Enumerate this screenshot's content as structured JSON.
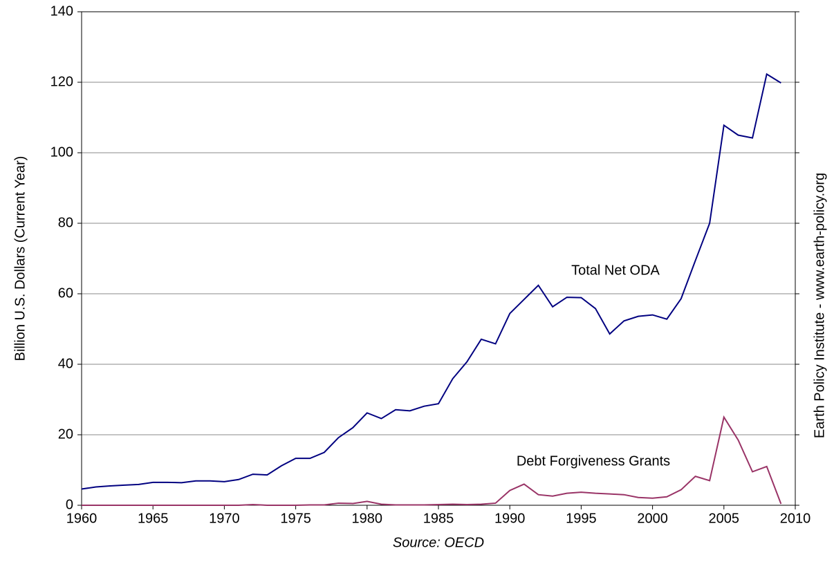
{
  "chart_data": {
    "type": "line",
    "y_label": "Billion U.S. Dollars (Current Year)",
    "x_label": "Source: OECD",
    "right_label": "Earth Policy Institute - www.earth-policy.org",
    "x": [
      1960,
      1961,
      1962,
      1963,
      1964,
      1965,
      1966,
      1967,
      1968,
      1969,
      1970,
      1971,
      1972,
      1973,
      1974,
      1975,
      1976,
      1977,
      1978,
      1979,
      1980,
      1981,
      1982,
      1983,
      1984,
      1985,
      1986,
      1987,
      1988,
      1989,
      1990,
      1991,
      1992,
      1993,
      1994,
      1995,
      1996,
      1997,
      1998,
      1999,
      2000,
      2001,
      2002,
      2003,
      2004,
      2005,
      2006,
      2007,
      2008,
      2009
    ],
    "series": [
      {
        "name": "Total Net ODA",
        "color": "#000080",
        "values": [
          4.6,
          5.2,
          5.5,
          5.7,
          5.9,
          6.5,
          6.5,
          6.4,
          6.9,
          6.9,
          6.7,
          7.3,
          8.8,
          8.6,
          11.2,
          13.3,
          13.3,
          15.0,
          19.2,
          22.0,
          26.2,
          24.6,
          27.1,
          26.8,
          28.1,
          28.8,
          35.9,
          40.7,
          47.1,
          45.8,
          54.4,
          58.4,
          62.4,
          56.3,
          59.0,
          58.9,
          55.8,
          48.6,
          52.3,
          53.6,
          54.0,
          52.8,
          58.6,
          69.4,
          80.0,
          107.8,
          105.0,
          104.2,
          122.3,
          119.8
        ]
      },
      {
        "name": "Debt Forgiveness Grants",
        "color": "#993366",
        "values": [
          0,
          0,
          0,
          0,
          0,
          0,
          0,
          0,
          0,
          0,
          0,
          0,
          0.2,
          0,
          0,
          0,
          0.1,
          0.1,
          0.6,
          0.5,
          1.1,
          0.3,
          0.1,
          0.1,
          0.1,
          0.2,
          0.3,
          0.2,
          0.3,
          0.6,
          4.2,
          6.0,
          3.0,
          2.6,
          3.4,
          3.7,
          3.4,
          3.2,
          3.0,
          2.2,
          2.0,
          2.4,
          4.4,
          8.2,
          7.0,
          25.0,
          18.5,
          9.5,
          11.0,
          0.4
        ]
      }
    ],
    "xlim": [
      1960,
      2010
    ],
    "xticks": [
      1960,
      1965,
      1970,
      1975,
      1980,
      1985,
      1990,
      1995,
      2000,
      2005,
      2010
    ],
    "ylim": [
      0,
      140
    ],
    "yticks": [
      0,
      20,
      40,
      60,
      80,
      100,
      120,
      140
    ],
    "grid": true
  }
}
